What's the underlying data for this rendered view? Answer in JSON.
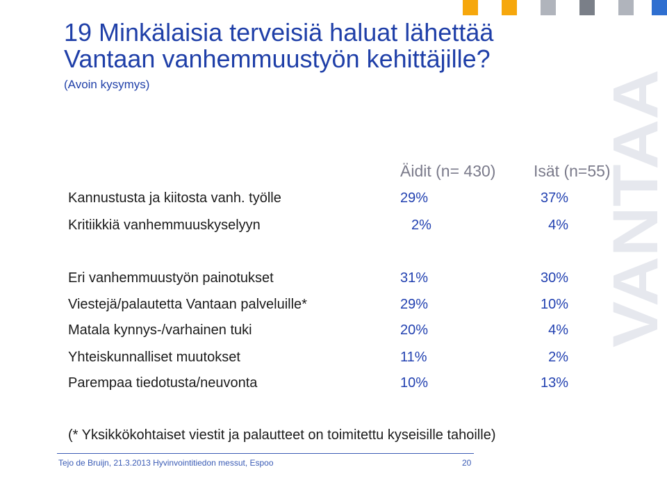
{
  "colors": {
    "title": "#1f3fa8",
    "value": "#2140b0",
    "muted": "#7a7a8a",
    "footer": "#3a5bb5",
    "watermark": "#e6e8ee",
    "squares": [
      "#f6a70c",
      "#f6a70c",
      "#b0b4bc",
      "#7a7f88",
      "#b0b4bc",
      "#2f6fd0"
    ]
  },
  "title": {
    "line1": "19 Minkälaisia terveisiä haluat lähettää",
    "line2": "Vantaan vanhemmuustyön kehittäjille?",
    "subtitle": "(Avoin kysymys)"
  },
  "watermark": {
    "text": "VANTAA"
  },
  "table": {
    "headers": {
      "col1": "Äidit (n= 430)",
      "col2": "Isät (n=55)"
    },
    "rows": [
      {
        "label": "Kannustusta ja kiitosta vanh. työlle",
        "v1": "29%",
        "v2": "37%"
      },
      {
        "label": "Kritiikkiä vanhemmuuskyselyyn",
        "v1": "2%",
        "v2": "4%"
      },
      {
        "label": "Eri vanhemmuustyön painotukset",
        "v1": "31%",
        "v2": "30%"
      },
      {
        "label": "Viestejä/palautetta Vantaan palveluille*",
        "v1": "29%",
        "v2": "10%"
      },
      {
        "label": "Matala kynnys-/varhainen tuki",
        "v1": "20%",
        "v2": "4%"
      },
      {
        "label": "Yhteiskunnalliset muutokset",
        "v1": "11%",
        "v2": "2%"
      },
      {
        "label": "Parempaa tiedotusta/neuvonta",
        "v1": "10%",
        "v2": "13%"
      }
    ]
  },
  "footnote": "(* Yksikkökohtaiset viestit ja palautteet on toimitettu kyseisille tahoille)",
  "footer": {
    "text": "Tejo de Bruijn, 21.3.2013 Hyvinvointitiedon messut, Espoo",
    "page": "20"
  }
}
